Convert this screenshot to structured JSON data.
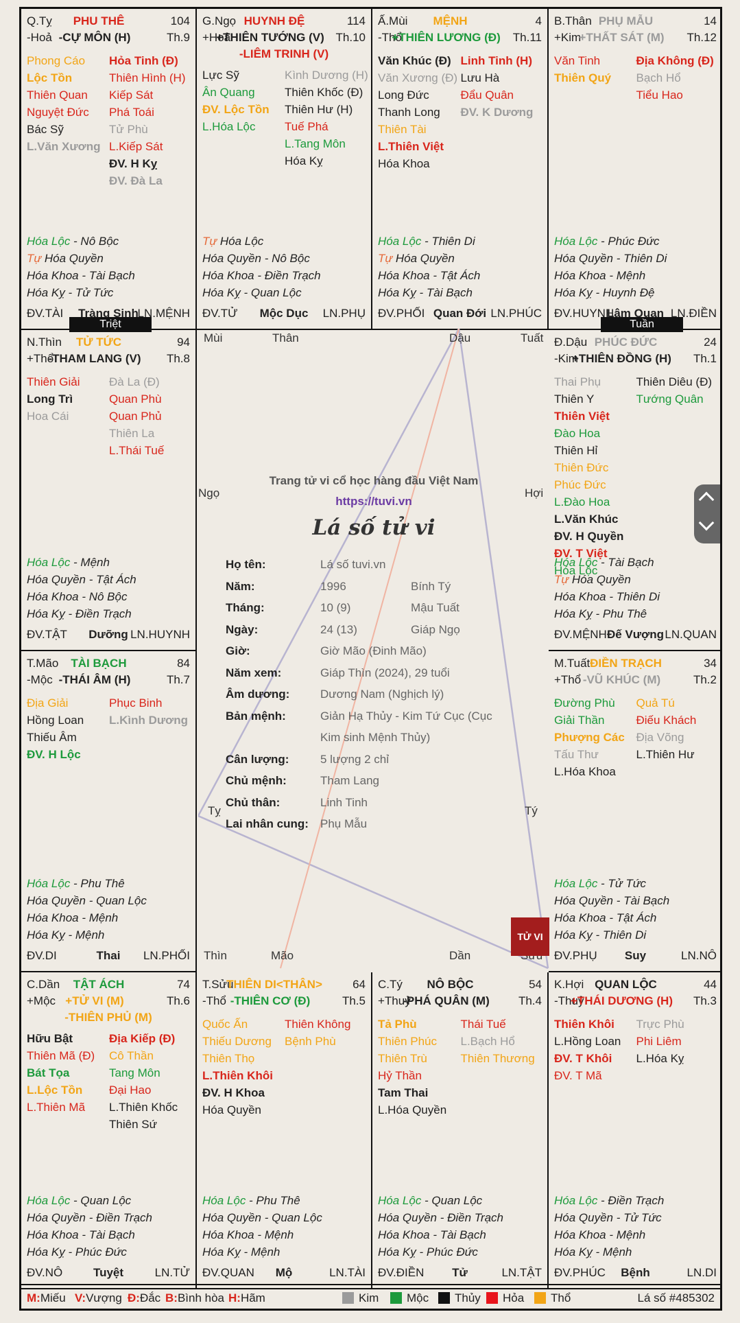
{
  "center": {
    "tagline": "Trang tử vi cổ học hàng đầu Việt Nam",
    "url": "https://tuvi.vn",
    "title": "Lá số tử vi",
    "info": [
      {
        "label": "Họ tên:",
        "v1": "Lá số tuvi.vn",
        "v2": ""
      },
      {
        "label": "Năm:",
        "v1": "1996",
        "v2": "Bính Tý"
      },
      {
        "label": "Tháng:",
        "v1": "10 (9)",
        "v2": "Mậu Tuất"
      },
      {
        "label": "Ngày:",
        "v1": "24 (13)",
        "v2": "Giáp Ngọ"
      },
      {
        "label": "Giờ:",
        "v1": "Giờ Mão (Đinh Mão)",
        "v2": ""
      },
      {
        "label": "Năm xem:",
        "v1": "Giáp Thìn (2024), 29 tuổi",
        "v2": ""
      },
      {
        "label": "Âm dương:",
        "v1": "Dương Nam (Nghịch lý)",
        "v2": ""
      },
      {
        "label": "Bản mệnh:",
        "v1": "Giản Hạ Thủy - Kim Tứ Cục (Cục",
        "v2": ""
      },
      {
        "label": "",
        "v1": "Kim sinh Mệnh Thủy)",
        "v2": ""
      },
      {
        "label": "Cân lượng:",
        "v1": "5 lượng 2 chỉ",
        "v2": ""
      },
      {
        "label": "Chủ mệnh:",
        "v1": "Tham Lang",
        "v2": ""
      },
      {
        "label": "Chủ thân:",
        "v1": "Linh Tinh",
        "v2": ""
      },
      {
        "label": "Lai nhân cung:",
        "v1": "Phụ Mẫu",
        "v2": ""
      }
    ],
    "branch_labels": {
      "mui": "Mùi",
      "than": "Thân",
      "dau": "Dậu",
      "tuat": "Tuất",
      "ngo": "Ngọ",
      "hoi": "Hợi",
      "ty_left": "Tỵ",
      "ty_right": "Tý",
      "thin": "Thìn",
      "mao": "Mão",
      "dan": "Dần",
      "suu": "Sửu"
    },
    "seal_text": "TỬ VI"
  },
  "tags": {
    "triet": "Triệt",
    "tuan": "Tuần"
  },
  "legend": {
    "m": "M:",
    "m_t": "Miếu",
    "v": "V:",
    "v_t": "Vượng",
    "d": "Đ:",
    "d_t": "Đắc",
    "b": "B:",
    "b_t": "Bình hòa",
    "h": "H:",
    "h_t": "Hãm",
    "kim": "Kim",
    "moc": "Mộc",
    "thuy": "Thủy",
    "hoa": "Hỏa",
    "tho": "Thổ",
    "chart_no": "Lá số #485302",
    "colors": {
      "kim": "#9b9b9b",
      "moc": "#1d9a3c",
      "thuy": "#111111",
      "hoa": "#e8141b",
      "tho": "#f2a516"
    }
  },
  "palaces": [
    {
      "id": "ty",
      "can": "Q.Tỵ",
      "hanh": "-Hoả",
      "name": "PHU THÊ",
      "name_color": "red",
      "age": "104",
      "main": "-CỰ MÔN (H)",
      "main_color": "blk",
      "main2": "",
      "th": "Th.9",
      "left": [
        [
          "Phong Cáo",
          "org"
        ],
        [
          "Lộc Tồn",
          "org-b"
        ],
        [
          "Thiên Quan",
          "red"
        ],
        [
          "Nguyệt Đức",
          "red"
        ],
        [
          "Bác Sỹ",
          "blk"
        ],
        [
          "L.Văn Xương",
          "gry-b"
        ]
      ],
      "right": [
        [
          "Hỏa Tinh (Đ)",
          "red-b"
        ],
        [
          "Thiên Hình (H)",
          "red"
        ],
        [
          "Kiếp Sát",
          "red"
        ],
        [
          "Phá Toái",
          "red"
        ],
        [
          "Tử Phù",
          "gry"
        ],
        [
          "L.Kiếp Sát",
          "red"
        ],
        [
          "ĐV. H Kỵ",
          "blk-b"
        ],
        [
          "ĐV. Đà La",
          "gry-b"
        ]
      ],
      "hoa": [
        [
          "Hóa Lộc",
          "grn",
          " - Nô Bộc"
        ],
        [
          "Tự",
          "rose",
          " Hóa Quyền"
        ],
        [
          "",
          "",
          "Hóa Khoa - Tài Bạch"
        ],
        [
          "",
          "",
          "Hóa Kỵ - Tử Tức"
        ]
      ],
      "foot": [
        "ĐV.TÀI",
        "Tràng Sinh",
        "LN.MỆNH"
      ]
    },
    {
      "id": "ngo",
      "can": "G.Ngọ",
      "hanh": "+Hoả",
      "name": "HUYNH ĐỆ",
      "name_color": "red",
      "age": "114",
      "main": "+THIÊN TƯỚNG (V)",
      "main_color": "blk",
      "main2": "-LIÊM TRINH (V)",
      "th": "Th.10",
      "left": [
        [
          "Lực Sỹ",
          "blk"
        ],
        [
          "Ân Quang",
          "grn"
        ],
        [
          "ĐV. Lộc Tồn",
          "org-b"
        ],
        [
          "L.Hóa Lộc",
          "grn"
        ]
      ],
      "right": [
        [
          "Kình Dương (H)",
          "gry"
        ],
        [
          "Thiên Khốc (Đ)",
          "blk"
        ],
        [
          "Thiên Hư (H)",
          "blk"
        ],
        [
          "Tuế Phá",
          "red"
        ],
        [
          "L.Tang Môn",
          "grn"
        ],
        [
          "Hóa Kỵ",
          "blk"
        ]
      ],
      "hoa": [
        [
          "Tự",
          "rose",
          " Hóa Lộc"
        ],
        [
          "",
          "",
          "Hóa Quyền - Nô Bộc"
        ],
        [
          "",
          "",
          "Hóa Khoa - Điền Trạch"
        ],
        [
          "",
          "",
          "Hóa Kỵ - Quan Lộc"
        ]
      ],
      "foot": [
        "ĐV.TỬ",
        "Mộc Dục",
        "LN.PHỤ"
      ]
    },
    {
      "id": "mui",
      "can": "Ấ.Mùi",
      "hanh": "-Thổ",
      "name": "MỆNH",
      "name_color": "org",
      "age": "4",
      "main": "+THIÊN LƯƠNG (Đ)",
      "main_color": "grn",
      "main2": "",
      "th": "Th.11",
      "left": [
        [
          "Văn Khúc (Đ)",
          "blk-b"
        ],
        [
          "Văn Xương (Đ)",
          "gry"
        ],
        [
          "Long Đức",
          "blk"
        ],
        [
          "Thanh Long",
          "blk"
        ],
        [
          "Thiên Tài",
          "org"
        ],
        [
          "L.Thiên Việt",
          "red-b"
        ],
        [
          "Hóa Khoa",
          "blk"
        ]
      ],
      "right": [
        [
          "Linh Tinh (H)",
          "red-b"
        ],
        [
          "Lưu Hà",
          "blk"
        ],
        [
          "Đẩu Quân",
          "red"
        ],
        [
          "ĐV. K Dương",
          "gry-b"
        ]
      ],
      "hoa": [
        [
          "Hóa Lộc",
          "grn",
          " - Thiên Di"
        ],
        [
          "Tự",
          "rose",
          " Hóa Quyền"
        ],
        [
          "",
          "",
          "Hóa Khoa - Tật Ách"
        ],
        [
          "",
          "",
          "Hóa Kỵ - Tài Bạch"
        ]
      ],
      "foot": [
        "ĐV.PHỐI",
        "Quan Đới",
        "LN.PHÚC"
      ]
    },
    {
      "id": "than",
      "can": "B.Thân",
      "hanh": "+Kim",
      "name": "PHỤ MẪU",
      "name_color": "gry",
      "age": "14",
      "main": "+THẤT SÁT (M)",
      "main_color": "gry",
      "main2": "",
      "th": "Th.12",
      "left": [
        [
          "Văn Tinh",
          "red"
        ],
        [
          "Thiên Quý",
          "org-b"
        ]
      ],
      "right": [
        [
          "Địa Không (Đ)",
          "red-b"
        ],
        [
          "Bạch Hổ",
          "gry"
        ],
        [
          "Tiểu Hao",
          "red"
        ]
      ],
      "hoa": [
        [
          "Hóa Lộc",
          "grn",
          " - Phúc Đức"
        ],
        [
          "",
          "",
          "Hóa Quyền - Thiên Di"
        ],
        [
          "",
          "",
          "Hóa Khoa - Mệnh"
        ],
        [
          "",
          "",
          "Hóa Kỵ - Huynh Đệ"
        ]
      ],
      "foot": [
        "ĐV.HUYNH",
        "Lâm Quan",
        "LN.ĐIỀN"
      ]
    },
    {
      "id": "thin",
      "can": "N.Thìn",
      "hanh": "+Thổ",
      "name": "TỬ TỨC",
      "name_color": "org",
      "age": "94",
      "main": "-THAM LANG (V)",
      "main_color": "blk",
      "main2": "",
      "th": "Th.8",
      "left": [
        [
          "Thiên Giải",
          "red"
        ],
        [
          "Long Trì",
          "blk-b"
        ],
        [
          "Hoa Cái",
          "gry"
        ]
      ],
      "right": [
        [
          "Đà La (Đ)",
          "gry"
        ],
        [
          "Quan Phù",
          "red"
        ],
        [
          "Quan Phủ",
          "red"
        ],
        [
          "Thiên La",
          "gry"
        ],
        [
          "L.Thái Tuế",
          "red"
        ]
      ],
      "hoa": [
        [
          "Hóa Lộc",
          "grn",
          " - Mệnh"
        ],
        [
          "",
          "",
          "Hóa Quyền - Tật Ách"
        ],
        [
          "",
          "",
          "Hóa Khoa - Nô Bộc"
        ],
        [
          "",
          "",
          "Hóa Kỵ - Điền Trạch"
        ]
      ],
      "foot": [
        "ĐV.TẬT",
        "Dưỡng",
        "LN.HUYNH"
      ]
    },
    {
      "id": "dau",
      "can": "Đ.Dậu",
      "hanh": "-Kim",
      "name": "PHÚC ĐỨC",
      "name_color": "gry",
      "age": "24",
      "main": "+THIÊN ĐỒNG (H)",
      "main_color": "blk",
      "main2": "",
      "th": "Th.1",
      "left": [
        [
          "Thai Phụ",
          "gry"
        ],
        [
          "Thiên Y",
          "blk"
        ],
        [
          "Thiên Việt",
          "red-b"
        ],
        [
          "Đào Hoa",
          "grn"
        ],
        [
          "Thiên Hỉ",
          "blk"
        ],
        [
          "Thiên Đức",
          "org"
        ],
        [
          "Phúc Đức",
          "org"
        ],
        [
          "L.Đào Hoa",
          "grn"
        ],
        [
          "L.Văn Khúc",
          "blk-b"
        ],
        [
          "ĐV. H Quyền",
          "blk-b"
        ],
        [
          "ĐV. T Việt",
          "red-b"
        ],
        [
          "Hóa Lộc",
          "grn"
        ]
      ],
      "right": [
        [
          "Thiên Diêu (Đ)",
          "blk"
        ],
        [
          "Tướng Quân",
          "grn"
        ]
      ],
      "hoa": [
        [
          "Hóa Lộc",
          "grn",
          " - Tài Bạch"
        ],
        [
          "Tự",
          "rose",
          " Hóa Quyền"
        ],
        [
          "",
          "",
          "Hóa Khoa - Thiên Di"
        ],
        [
          "",
          "",
          "Hóa Kỵ - Phu Thê"
        ]
      ],
      "foot": [
        "ĐV.MỆNH",
        "Đế Vượng",
        "LN.QUAN"
      ]
    },
    {
      "id": "mao",
      "can": "T.Mão",
      "hanh": "-Mộc",
      "name": "TÀI BẠCH",
      "name_color": "grn",
      "age": "84",
      "main": "-THÁI ÂM (H)",
      "main_color": "blk",
      "main2": "",
      "th": "Th.7",
      "left": [
        [
          "Địa Giải",
          "org"
        ],
        [
          "Hồng Loan",
          "blk"
        ],
        [
          "Thiếu Âm",
          "blk"
        ],
        [
          "ĐV. H Lộc",
          "grn-b"
        ]
      ],
      "right": [
        [
          "Phục Binh",
          "red"
        ],
        [
          "L.Kình Dương",
          "gry-b"
        ]
      ],
      "hoa": [
        [
          "Hóa Lộc",
          "grn",
          " - Phu Thê"
        ],
        [
          "",
          "",
          "Hóa Quyền - Quan Lộc"
        ],
        [
          "",
          "",
          "Hóa Khoa - Mệnh"
        ],
        [
          "",
          "",
          "Hóa Kỵ - Mệnh"
        ]
      ],
      "foot": [
        "ĐV.DI",
        "Thai",
        "LN.PHỐI"
      ]
    },
    {
      "id": "tuat",
      "can": "M.Tuất",
      "hanh": "+Thổ",
      "name": "ĐIỀN TRẠCH",
      "name_color": "org",
      "age": "34",
      "main": "-VŨ KHÚC (M)",
      "main_color": "gry",
      "main2": "",
      "th": "Th.2",
      "left": [
        [
          "Đường Phù",
          "grn"
        ],
        [
          "Giải Thần",
          "grn"
        ],
        [
          "Phượng Các",
          "org-b"
        ],
        [
          "Tấu Thư",
          "gry"
        ],
        [
          "L.Hóa Khoa",
          "blk"
        ]
      ],
      "right": [
        [
          "Quả Tú",
          "org"
        ],
        [
          "Điếu Khách",
          "red"
        ],
        [
          "Địa Võng",
          "gry"
        ],
        [
          "L.Thiên Hư",
          "blk"
        ]
      ],
      "hoa": [
        [
          "Hóa Lộc",
          "grn",
          " - Tử Tức"
        ],
        [
          "",
          "",
          "Hóa Quyền - Tài Bạch"
        ],
        [
          "",
          "",
          "Hóa Khoa - Tật Ách"
        ],
        [
          "",
          "",
          "Hóa Kỵ - Thiên Di"
        ]
      ],
      "foot": [
        "ĐV.PHỤ",
        "Suy",
        "LN.NÔ"
      ]
    },
    {
      "id": "dan",
      "can": "C.Dần",
      "hanh": "+Mộc",
      "name": "TẬT ÁCH",
      "name_color": "grn",
      "age": "74",
      "main": "+TỬ VI (M)",
      "main_color": "org",
      "main2": "-THIÊN PHỦ (M)",
      "th": "Th.6",
      "left": [
        [
          "Hữu Bật",
          "blk-b"
        ],
        [
          "Thiên Mã (Đ)",
          "red"
        ],
        [
          "Bát Tọa",
          "grn-b"
        ],
        [
          "L.Lộc Tồn",
          "org-b"
        ],
        [
          "L.Thiên Mã",
          "red"
        ]
      ],
      "right": [
        [
          "Địa Kiếp (Đ)",
          "red-b"
        ],
        [
          "Cô Thần",
          "org"
        ],
        [
          "Tang Môn",
          "grn"
        ],
        [
          "Đại Hao",
          "red"
        ],
        [
          "L.Thiên Khốc",
          "blk"
        ],
        [
          "Thiên Sứ",
          "blk"
        ]
      ],
      "hoa": [
        [
          "Hóa Lộc",
          "grn",
          " - Quan Lộc"
        ],
        [
          "",
          "",
          "Hóa Quyền - Điền Trạch"
        ],
        [
          "",
          "",
          "Hóa Khoa - Tài Bạch"
        ],
        [
          "",
          "",
          "Hóa Kỵ - Phúc Đức"
        ]
      ],
      "foot": [
        "ĐV.NÔ",
        "Tuyệt",
        "LN.TỬ"
      ]
    },
    {
      "id": "suu",
      "can": "T.Sửu",
      "hanh": "-Thổ",
      "name": "THIÊN DI<THÂN>",
      "name_color": "org",
      "age": "64",
      "main": "-THIÊN CƠ (Đ)",
      "main_color": "grn",
      "main2": "",
      "th": "Th.5",
      "left": [
        [
          "Quốc Ấn",
          "org"
        ],
        [
          "Thiếu Dương",
          "org"
        ],
        [
          "Thiên Thọ",
          "org"
        ],
        [
          "L.Thiên Khôi",
          "red-b"
        ],
        [
          "ĐV. H Khoa",
          "blk-b"
        ],
        [
          "Hóa Quyền",
          "blk"
        ]
      ],
      "right": [
        [
          "Thiên Không",
          "red"
        ],
        [
          "Bệnh Phù",
          "org"
        ]
      ],
      "hoa": [
        [
          "Hóa Lộc",
          "grn",
          " - Phu Thê"
        ],
        [
          "",
          "",
          "Hóa Quyền - Quan Lộc"
        ],
        [
          "",
          "",
          "Hóa Khoa - Mệnh"
        ],
        [
          "",
          "",
          "Hóa Kỵ - Mệnh"
        ]
      ],
      "foot": [
        "ĐV.QUAN",
        "Mộ",
        "LN.TÀI"
      ]
    },
    {
      "id": "ty2",
      "can": "C.Tý",
      "hanh": "+Thuỷ",
      "name": "NÔ BỘC",
      "name_color": "blk",
      "age": "54",
      "main": "-PHÁ QUÂN (M)",
      "main_color": "blk",
      "main2": "",
      "th": "Th.4",
      "left": [
        [
          "Tả Phù",
          "org-b"
        ],
        [
          "Thiên Phúc",
          "org"
        ],
        [
          "Thiên Trù",
          "org"
        ],
        [
          "Hỷ Thần",
          "red"
        ],
        [
          "Tam Thai",
          "blk-b"
        ],
        [
          "L.Hóa Quyền",
          "blk"
        ]
      ],
      "right": [
        [
          "Thái Tuế",
          "red"
        ],
        [
          "L.Bạch Hổ",
          "gry"
        ],
        [
          "Thiên Thương",
          "org"
        ]
      ],
      "hoa": [
        [
          "Hóa Lộc",
          "grn",
          " - Quan Lộc"
        ],
        [
          "",
          "",
          "Hóa Quyền - Điền Trạch"
        ],
        [
          "",
          "",
          "Hóa Khoa - Tài Bạch"
        ],
        [
          "",
          "",
          "Hóa Kỵ - Phúc Đức"
        ]
      ],
      "foot": [
        "ĐV.ĐIỀN",
        "Tử",
        "LN.TẬT"
      ]
    },
    {
      "id": "hoi",
      "can": "K.Hợi",
      "hanh": "-Thuỷ",
      "name": "QUAN LỘC",
      "name_color": "blk",
      "age": "44",
      "main": "+THÁI DƯƠNG (H)",
      "main_color": "red",
      "main2": "",
      "th": "Th.3",
      "left": [
        [
          "Thiên Khôi",
          "red-b"
        ],
        [
          "L.Hồng Loan",
          "blk"
        ],
        [
          "ĐV. T Khôi",
          "red-b"
        ],
        [
          "ĐV. T Mã",
          "red"
        ]
      ],
      "right": [
        [
          "Trực Phù",
          "gry"
        ],
        [
          "Phi Liêm",
          "red"
        ],
        [
          "L.Hóa Kỵ",
          "blk"
        ]
      ],
      "hoa": [
        [
          "Hóa Lộc",
          "grn",
          " - Điền Trạch"
        ],
        [
          "",
          "",
          "Hóa Quyền - Tử Tức"
        ],
        [
          "",
          "",
          "Hóa Khoa - Mệnh"
        ],
        [
          "",
          "",
          "Hóa Kỵ - Mệnh"
        ]
      ],
      "foot": [
        "ĐV.PHÚC",
        "Bệnh",
        "LN.DI"
      ]
    }
  ]
}
